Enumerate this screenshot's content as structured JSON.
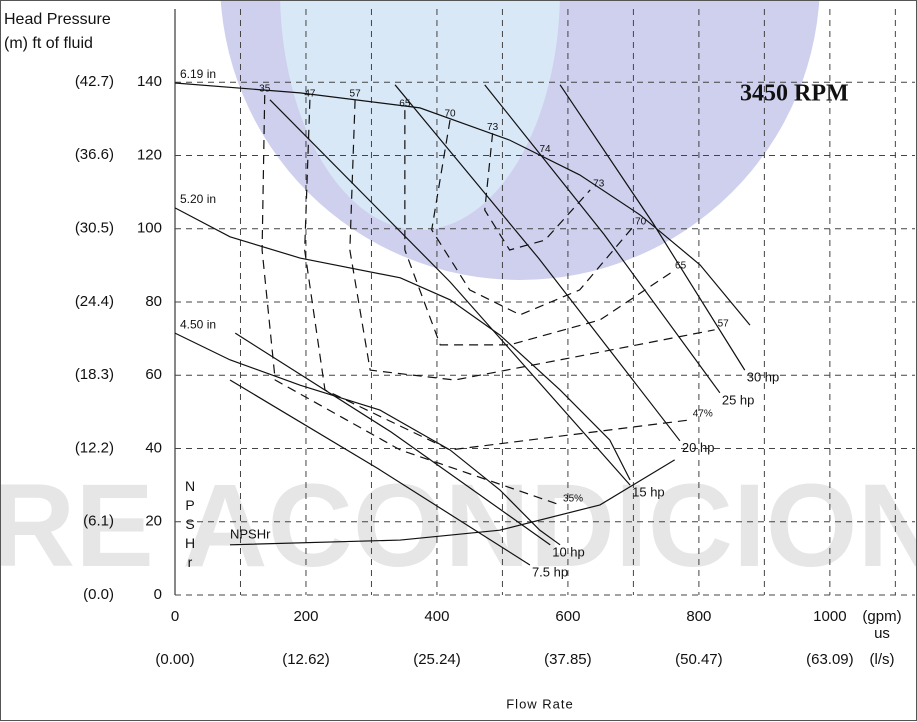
{
  "chart_data": {
    "type": "line",
    "ylabel": "Head Pressure",
    "ylabel_units": "(m) ft of fluid",
    "xlabel": "Flow Rate",
    "x_units": "(gpm)",
    "x_units_sub": "us",
    "x2_units": "(l/s)",
    "annotation": "3450 RPM",
    "npsh_axis_label": "NPSHr",
    "watermark": "RE ACONDICIONA",
    "xlim": [
      0,
      1130
    ],
    "xticks": [
      0,
      200,
      400,
      600,
      800,
      1000
    ],
    "xminor": [
      100,
      300,
      500,
      700,
      900,
      1100
    ],
    "x2lim": [
      0,
      71.29
    ],
    "x2ticks": [
      {
        "value": 0,
        "label": "(0.00)"
      },
      {
        "value": 12.62,
        "label": "(12.62)"
      },
      {
        "value": 25.24,
        "label": "(25.24)"
      },
      {
        "value": 37.85,
        "label": "(37.85)"
      },
      {
        "value": 50.47,
        "label": "(50.47)"
      },
      {
        "value": 63.09,
        "label": "(63.09)"
      }
    ],
    "ylim": [
      0,
      160
    ],
    "yticks": [
      0,
      20,
      40,
      60,
      80,
      100,
      120,
      140
    ],
    "y2lim": [
      0,
      48.768
    ],
    "y2ticks": [
      {
        "value": 0,
        "label": "(0.0)"
      },
      {
        "value": 6.1,
        "label": "(6.1)"
      },
      {
        "value": 12.2,
        "label": "(12.2)"
      },
      {
        "value": 18.3,
        "label": "(18.3)"
      },
      {
        "value": 24.4,
        "label": "(24.4)"
      },
      {
        "value": 30.5,
        "label": "(30.5)"
      },
      {
        "value": 36.6,
        "label": "(36.6)"
      },
      {
        "value": 42.7,
        "label": "(42.7)"
      }
    ],
    "grid": true,
    "series": [
      {
        "name": "6.19 in",
        "group": "impeller",
        "color": "#111",
        "style": "solid",
        "x": [
          0,
          191,
          374,
          511,
          618,
          710,
          802,
          878
        ],
        "values": [
          139.8,
          137.1,
          133.0,
          124.2,
          114.7,
          103.8,
          90.1,
          73.7
        ]
      },
      {
        "name": "5.20 in",
        "group": "impeller",
        "color": "#111",
        "style": "solid",
        "x": [
          0,
          84,
          191,
          344,
          420,
          496,
          588,
          664,
          695
        ],
        "values": [
          105.7,
          97.8,
          92.0,
          86.6,
          80.6,
          71.0,
          56.0,
          42.3,
          31.4
        ]
      },
      {
        "name": "4.50 in",
        "group": "impeller",
        "color": "#111",
        "style": "solid",
        "x": [
          0,
          84,
          191,
          313,
          420,
          496,
          557,
          588
        ],
        "values": [
          71.5,
          64.2,
          57.3,
          50.5,
          39.6,
          28.7,
          17.7,
          13.7
        ]
      },
      {
        "name": "30 hp",
        "group": "power",
        "color": "#111",
        "style": "solid",
        "x": [
          588,
          730,
          870
        ],
        "values": [
          139.3,
          101.5,
          61.4
        ]
      },
      {
        "name": "25 hp",
        "group": "power",
        "color": "#111",
        "style": "solid",
        "x": [
          473,
          655,
          832
        ],
        "values": [
          139.3,
          98.5,
          55.2
        ]
      },
      {
        "name": "20 hp",
        "group": "power",
        "color": "#111",
        "style": "solid",
        "x": [
          336,
          555,
          771
        ],
        "values": [
          139.3,
          92.0,
          42.1
        ]
      },
      {
        "name": "15 hp",
        "group": "power",
        "color": "#111",
        "style": "solid",
        "x": [
          145,
          420,
          695
        ],
        "values": [
          135.2,
          85.5,
          30.0
        ]
      },
      {
        "name": "10 hp",
        "group": "power",
        "color": "#111",
        "style": "solid",
        "x": [
          92,
          330,
          573
        ],
        "values": [
          71.5,
          44.5,
          13.7
        ]
      },
      {
        "name": "7.5 hp",
        "group": "power",
        "color": "#111",
        "style": "solid",
        "x": [
          84,
          310,
          542
        ],
        "values": [
          58.7,
          34.5,
          8.2
        ]
      },
      {
        "name": "35",
        "end_label": "35%",
        "group": "efficiency",
        "color": "#111",
        "style": "dashed",
        "x": [
          137,
          133,
          153,
          344,
          588
        ],
        "values": [
          136.5,
          94.2,
          58.7,
          39.6,
          24.6
        ]
      },
      {
        "name": "47",
        "end_label": "47%",
        "group": "efficiency",
        "color": "#111",
        "style": "dashed",
        "x": [
          206,
          198,
          229,
          420,
          786
        ],
        "values": [
          135.2,
          94.2,
          56.0,
          39.6,
          47.8
        ]
      },
      {
        "name": "57",
        "end_label": "57",
        "group": "efficiency",
        "color": "#111",
        "style": "dashed",
        "x": [
          275,
          267,
          298,
          427,
          588,
          824
        ],
        "values": [
          135.2,
          94.2,
          61.4,
          58.7,
          64.2,
          72.4
        ]
      },
      {
        "name": "65",
        "end_label": "65",
        "group": "efficiency",
        "color": "#111",
        "style": "dashed",
        "x": [
          351,
          351,
          405,
          511,
          649,
          759
        ],
        "values": [
          132.4,
          94.2,
          68.3,
          68.3,
          75.1,
          88.2
        ]
      },
      {
        "name": "70",
        "end_label": "70",
        "group": "efficiency",
        "color": "#111",
        "style": "dashed",
        "x": [
          420,
          392,
          450,
          527,
          618,
          698
        ],
        "values": [
          129.7,
          99.7,
          83.3,
          76.5,
          83.3,
          100.2
        ]
      },
      {
        "name": "73",
        "end_label": "73",
        "group": "efficiency",
        "color": "#111",
        "style": "dashed",
        "x": [
          485,
          473,
          511,
          565,
          634
        ],
        "values": [
          126.1,
          105.1,
          94.2,
          96.9,
          110.6
        ]
      },
      {
        "name": "74",
        "group": "efficiency",
        "color": "#111",
        "style": "dashed",
        "x": [
          565
        ],
        "values": [
          120.1
        ]
      },
      {
        "name": "NPSHr",
        "group": "npsh",
        "color": "#111",
        "style": "solid",
        "x": [
          84,
          344,
          496,
          649,
          763
        ],
        "values": [
          13.7,
          15.0,
          17.7,
          24.6,
          36.9
        ]
      }
    ]
  }
}
